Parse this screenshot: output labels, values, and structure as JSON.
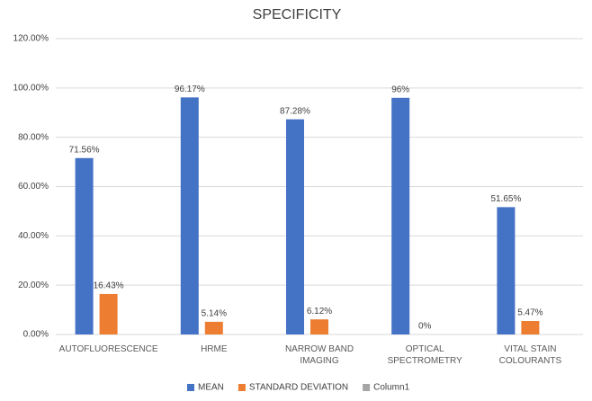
{
  "chart_data": {
    "type": "bar",
    "title": "SPECIFICITY",
    "categories": [
      "AUTOFLUORESCENCE",
      "HRME",
      "NARROW BAND IMAGING",
      "OPTICAL SPECTROMETRY",
      "VITAL STAIN COLOURANTS"
    ],
    "series": [
      {
        "name": "MEAN",
        "color": "#4472c4",
        "values": [
          71.56,
          96.17,
          87.28,
          96,
          51.65
        ],
        "value_labels": [
          "71.56%",
          "96.17%",
          "87.28%",
          "96%",
          "51.65%"
        ]
      },
      {
        "name": "STANDARD DEVIATION",
        "color": "#ed7d31",
        "values": [
          16.43,
          5.14,
          6.12,
          0,
          5.47
        ],
        "value_labels": [
          "16.43%",
          "5.14%",
          "6.12%",
          "0%",
          "5.47%"
        ]
      },
      {
        "name": "Column1",
        "color": "#a5a5a5",
        "values": [
          null,
          null,
          null,
          null,
          null
        ]
      }
    ],
    "ylim": [
      0,
      120
    ],
    "yticks": [
      {
        "value": 0,
        "label": "0.00%"
      },
      {
        "value": 20,
        "label": "20.00%"
      },
      {
        "value": 40,
        "label": "40.00%"
      },
      {
        "value": 60,
        "label": "60.00%"
      },
      {
        "value": 80,
        "label": "80.00%"
      },
      {
        "value": 100,
        "label": "100.00%"
      },
      {
        "value": 120,
        "label": "120.00%"
      }
    ],
    "grid": true,
    "legend": "bottom"
  }
}
